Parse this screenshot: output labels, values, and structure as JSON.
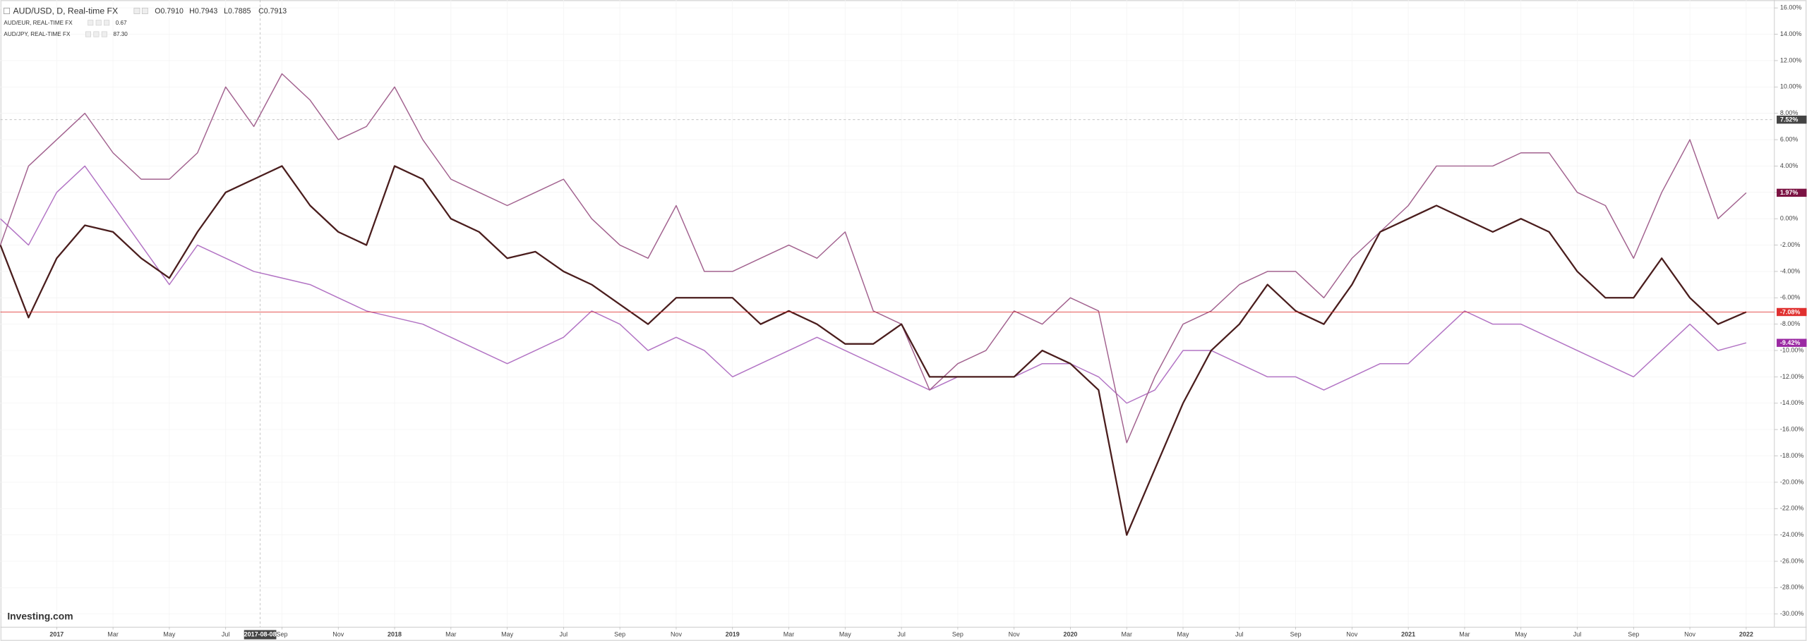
{
  "chart_data": {
    "type": "line",
    "ohlc": [
      "O0.7910",
      "H0.7943",
      "L0.7885",
      "C0.7913"
    ],
    "watermark": "Investing.com",
    "grid": true,
    "x": [
      "2016-11",
      "2016-12",
      "2017-01",
      "2017-02",
      "2017-03",
      "2017-04",
      "2017-05",
      "2017-06",
      "2017-07",
      "2017-08",
      "2017-09",
      "2017-10",
      "2017-11",
      "2017-12",
      "2018-01",
      "2018-02",
      "2018-03",
      "2018-04",
      "2018-05",
      "2018-06",
      "2018-07",
      "2018-08",
      "2018-09",
      "2018-10",
      "2018-11",
      "2018-12",
      "2019-01",
      "2019-02",
      "2019-03",
      "2019-04",
      "2019-05",
      "2019-06",
      "2019-07",
      "2019-08",
      "2019-09",
      "2019-10",
      "2019-11",
      "2019-12",
      "2020-01",
      "2020-02",
      "2020-03",
      "2020-04",
      "2020-05",
      "2020-06",
      "2020-07",
      "2020-08",
      "2020-09",
      "2020-10",
      "2020-11",
      "2020-12",
      "2021-01",
      "2021-02",
      "2021-03",
      "2021-04",
      "2021-05",
      "2021-06",
      "2021-07",
      "2021-08",
      "2021-09",
      "2021-10",
      "2021-11",
      "2021-12",
      "2022-01"
    ],
    "xlim": [
      "2016-11",
      "2022-02"
    ],
    "xticks": [
      {
        "value": "2017-01",
        "label": "2017"
      },
      {
        "value": "2017-03",
        "label": "Mar"
      },
      {
        "value": "2017-05",
        "label": "May"
      },
      {
        "value": "2017-07",
        "label": "Jul"
      },
      {
        "value": "2017-09",
        "label": "Sep"
      },
      {
        "value": "2017-11",
        "label": "Nov"
      },
      {
        "value": "2018-01",
        "label": "2018"
      },
      {
        "value": "2018-03",
        "label": "Mar"
      },
      {
        "value": "2018-05",
        "label": "May"
      },
      {
        "value": "2018-07",
        "label": "Jul"
      },
      {
        "value": "2018-09",
        "label": "Sep"
      },
      {
        "value": "2018-11",
        "label": "Nov"
      },
      {
        "value": "2019-01",
        "label": "2019"
      },
      {
        "value": "2019-03",
        "label": "Mar"
      },
      {
        "value": "2019-05",
        "label": "May"
      },
      {
        "value": "2019-07",
        "label": "Jul"
      },
      {
        "value": "2019-09",
        "label": "Sep"
      },
      {
        "value": "2019-11",
        "label": "Nov"
      },
      {
        "value": "2020-01",
        "label": "2020"
      },
      {
        "value": "2020-03",
        "label": "Mar"
      },
      {
        "value": "2020-05",
        "label": "May"
      },
      {
        "value": "2020-07",
        "label": "Jul"
      },
      {
        "value": "2020-09",
        "label": "Sep"
      },
      {
        "value": "2020-11",
        "label": "Nov"
      },
      {
        "value": "2021-01",
        "label": "2021"
      },
      {
        "value": "2021-03",
        "label": "Mar"
      },
      {
        "value": "2021-05",
        "label": "May"
      },
      {
        "value": "2021-07",
        "label": "Jul"
      },
      {
        "value": "2021-09",
        "label": "Sep"
      },
      {
        "value": "2021-11",
        "label": "Nov"
      },
      {
        "value": "2022-01",
        "label": "2022"
      }
    ],
    "ylim": [
      -31,
      16.6
    ],
    "yticks": [
      {
        "value": 16,
        "label": "16.00%"
      },
      {
        "value": 14,
        "label": "14.00%"
      },
      {
        "value": 12,
        "label": "12.00%"
      },
      {
        "value": 10,
        "label": "10.00%"
      },
      {
        "value": 8,
        "label": "8.00%"
      },
      {
        "value": 6,
        "label": "6.00%"
      },
      {
        "value": 4,
        "label": "4.00%"
      },
      {
        "value": 2,
        "label": "2.00%"
      },
      {
        "value": 0,
        "label": "0.00%"
      },
      {
        "value": -2,
        "label": "-2.00%"
      },
      {
        "value": -4,
        "label": "-4.00%"
      },
      {
        "value": -6,
        "label": "-6.00%"
      },
      {
        "value": -8,
        "label": "-8.00%"
      },
      {
        "value": -10,
        "label": "-10.00%"
      },
      {
        "value": -12,
        "label": "-12.00%"
      },
      {
        "value": -14,
        "label": "-14.00%"
      },
      {
        "value": -16,
        "label": "-16.00%"
      },
      {
        "value": -18,
        "label": "-18.00%"
      },
      {
        "value": -20,
        "label": "-20.00%"
      },
      {
        "value": -22,
        "label": "-22.00%"
      },
      {
        "value": -24,
        "label": "-24.00%"
      },
      {
        "value": -26,
        "label": "-26.00%"
      },
      {
        "value": -28,
        "label": "-28.00%"
      },
      {
        "value": -30,
        "label": "-30.00%"
      }
    ],
    "crosshair": {
      "x": "2017-08-08",
      "y": 7.52,
      "y_label": "7.52%"
    },
    "series": [
      {
        "name": "AUD/USD, D, Real-time FX",
        "color": "#4a1d1d",
        "badge_color": "#e0302f",
        "last_label": "-7.08%",
        "values": [
          -2,
          -7.5,
          -3,
          -0.5,
          -1,
          -3,
          -4.5,
          -1,
          2,
          3,
          4,
          1,
          -1,
          -2,
          4,
          3,
          0,
          -1,
          -3,
          -2.5,
          -4,
          -5,
          -6.5,
          -8,
          -6,
          -6,
          -6,
          -8,
          -7,
          -8,
          -9.5,
          -9.5,
          -8,
          -12,
          -12,
          -12,
          -12,
          -10,
          -11,
          -13,
          -24,
          -19,
          -14,
          -10,
          -8,
          -5,
          -7,
          -8,
          -5,
          -1,
          0,
          1,
          0,
          -1,
          0,
          -1,
          -4,
          -6,
          -6,
          -3,
          -6,
          -8,
          -7.08
        ]
      },
      {
        "name": "AUD/EUR, REAL-TIME FX",
        "legend_value": "0.67",
        "color": "#a2628f",
        "badge_color": "#7b1343",
        "last_label": "1.97%",
        "values": [
          -2,
          4,
          6,
          8,
          5,
          3,
          3,
          5,
          10,
          7,
          11,
          9,
          6,
          7,
          10,
          6,
          3,
          2,
          1,
          2,
          3,
          0,
          -2,
          -3,
          1,
          -4,
          -4,
          -3,
          -2,
          -3,
          -1,
          -7,
          -8,
          -13,
          -11,
          -10,
          -7,
          -8,
          -6,
          -7,
          -17,
          -12,
          -8,
          -7,
          -5,
          -4,
          -4,
          -6,
          -3,
          -1,
          1,
          4,
          4,
          4,
          5,
          5,
          2,
          1,
          -3,
          2,
          6,
          0,
          1.97
        ]
      },
      {
        "name": "AUD/JPY, REAL-TIME FX",
        "legend_value": "87.30",
        "color": "#b273c4",
        "badge_color": "#9b2aa3",
        "last_label": "-9.42%",
        "values": [
          0,
          -2,
          2,
          4,
          1,
          -2,
          -5,
          -2,
          -3,
          -4,
          -4.5,
          -5,
          -6,
          -7,
          -7.5,
          -8,
          -9,
          -10,
          -11,
          -10,
          -9,
          -7,
          -8,
          -10,
          -9,
          -10,
          -12,
          -11,
          -10,
          -9,
          -10,
          -11,
          -12,
          -13,
          -12,
          -12,
          -12,
          -11,
          -11,
          -12,
          -14,
          -13,
          -10,
          -10,
          -11,
          -12,
          -12,
          -13,
          -12,
          -11,
          -11,
          -9,
          -7,
          -8,
          -8,
          -9,
          -10,
          -11,
          -12,
          -10,
          -8,
          -10,
          -9.42
        ]
      }
    ]
  }
}
